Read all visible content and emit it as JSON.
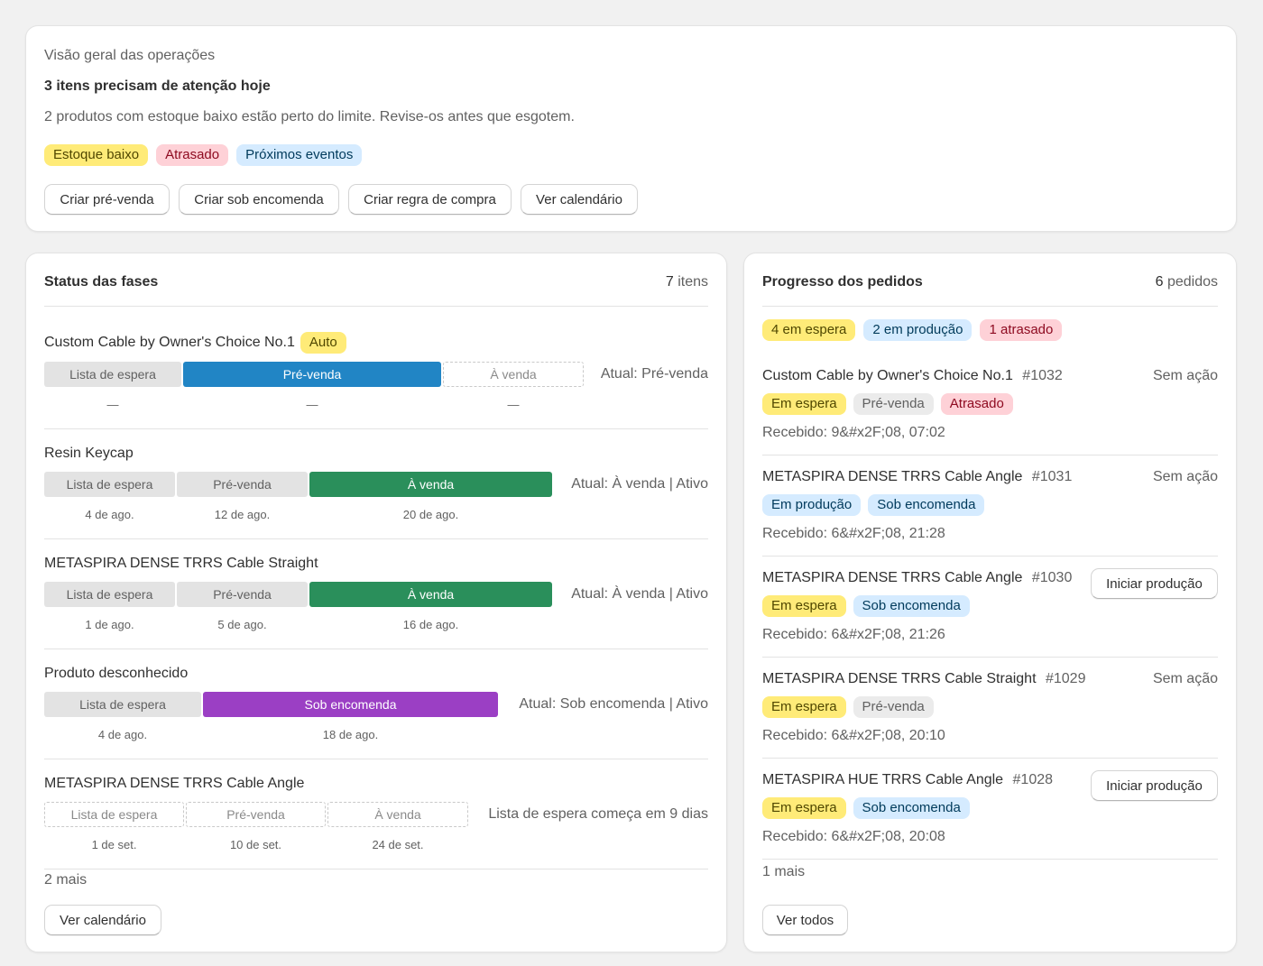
{
  "overview": {
    "title": "Visão geral das operações",
    "heading": "3 itens precisam de atenção hoje",
    "message": "2 produtos com estoque baixo estão perto do limite. Revise-os antes que esgotem.",
    "badges": [
      "Estoque baixo",
      "Atrasado",
      "Próximos eventos"
    ],
    "actions": [
      "Criar pré-venda",
      "Criar sob encomenda",
      "Criar regra de compra",
      "Ver calendário"
    ]
  },
  "phases": {
    "title": "Status das fases",
    "count_number": "7",
    "count_label": "itens",
    "items": [
      {
        "name": "Custom Cable by Owner's Choice No.1",
        "badge": "Auto",
        "segments": [
          "Lista de espera",
          "Pré-venda",
          "À venda"
        ],
        "dates": [
          "—",
          "—",
          "—"
        ],
        "current": "Atual: Pré-venda"
      },
      {
        "name": "Resin Keycap",
        "segments": [
          "Lista de espera",
          "Pré-venda",
          "À venda"
        ],
        "dates": [
          "4 de ago.",
          "12 de ago.",
          "20 de ago."
        ],
        "current": "Atual: À venda | Ativo"
      },
      {
        "name": "METASPIRA DENSE TRRS Cable Straight",
        "segments": [
          "Lista de espera",
          "Pré-venda",
          "À venda"
        ],
        "dates": [
          "1 de ago.",
          "5 de ago.",
          "16 de ago."
        ],
        "current": "Atual: À venda | Ativo"
      },
      {
        "name": "Produto desconhecido",
        "segments": [
          "Lista de espera",
          "Sob encomenda"
        ],
        "dates": [
          "4 de ago.",
          "18 de ago."
        ],
        "current": "Atual: Sob encomenda | Ativo"
      },
      {
        "name": "METASPIRA DENSE TRRS Cable Angle",
        "segments": [
          "Lista de espera",
          "Pré-venda",
          "À venda"
        ],
        "dates": [
          "1 de set.",
          "10 de set.",
          "24 de set."
        ],
        "current": "Lista de espera começa em 9 dias"
      }
    ],
    "more": "2 mais",
    "button": "Ver calendário"
  },
  "orders": {
    "title": "Progresso dos pedidos",
    "count_number": "6",
    "count_label": "pedidos",
    "summary_badges": [
      "4 em espera",
      "2 em produção",
      "1 atrasado"
    ],
    "items": [
      {
        "name": "Custom Cable by Owner's Choice No.1",
        "number": "#1032",
        "badges": [
          "Em espera",
          "Pré-venda",
          "Atrasado"
        ],
        "received": "Recebido: 9&#x2F;08, 07:02",
        "action": "Sem ação"
      },
      {
        "name": "METASPIRA DENSE TRRS Cable Angle",
        "number": "#1031",
        "badges": [
          "Em produção",
          "Sob encomenda"
        ],
        "received": "Recebido: 6&#x2F;08, 21:28",
        "action": "Sem ação"
      },
      {
        "name": "METASPIRA DENSE TRRS Cable Angle",
        "number": "#1030",
        "badges": [
          "Em espera",
          "Sob encomenda"
        ],
        "received": "Recebido: 6&#x2F;08, 21:26",
        "action": "Iniciar produção"
      },
      {
        "name": "METASPIRA DENSE TRRS Cable Straight",
        "number": "#1029",
        "badges": [
          "Em espera",
          "Pré-venda"
        ],
        "received": "Recebido: 6&#x2F;08, 20:10",
        "action": "Sem ação"
      },
      {
        "name": "METASPIRA HUE TRRS Cable Angle",
        "number": "#1028",
        "badges": [
          "Em espera",
          "Sob encomenda"
        ],
        "received": "Recebido: 6&#x2F;08, 20:08",
        "action": "Iniciar produção"
      }
    ],
    "more": "1 mais",
    "button": "Ver todos"
  },
  "colors": {
    "presale_blue": "#2185c5",
    "on_sale_green": "#2a8f5b",
    "made_to_order_purple": "#9b3fc4",
    "badge_yellow": "#ffeb78",
    "badge_pink": "#fed1d7",
    "badge_blue": "#d5ebff"
  }
}
